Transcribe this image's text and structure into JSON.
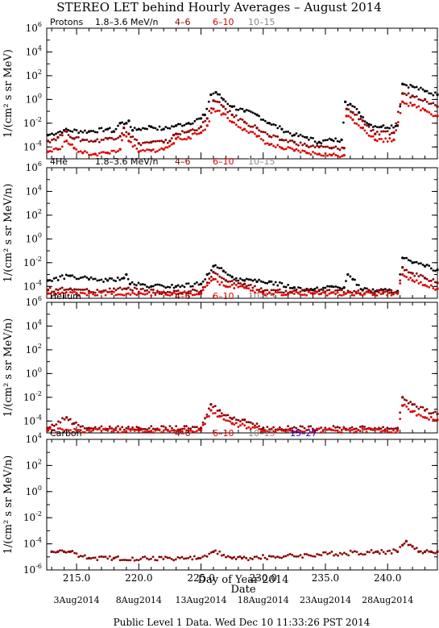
{
  "title": "STEREO LET behind Hourly Averages – August 2014",
  "xlabel": "Day of Year 2014",
  "date_axis_label": "Date",
  "footer": "Public Level 1 Data. Wed Dec 10 11:33:26 PST 2014",
  "x_ticks": [
    "215.0",
    "220.0",
    "225.0",
    "230.0",
    "235.0",
    "240.0"
  ],
  "date_ticks": [
    "3Aug2014",
    "8Aug2014",
    "13Aug2014",
    "18Aug2014",
    "23Aug2014",
    "28Aug2014"
  ],
  "colors": {
    "black": "#000000",
    "dark_red": "#8b0000",
    "red": "#e00000",
    "gray": "#888888",
    "blue": "#0000dd"
  },
  "chart_data": [
    {
      "type": "scatter",
      "panel_label": "Protons",
      "ylabel": "1/(cm² s sr MeV)",
      "ylog": true,
      "ylim_exp": [
        -5,
        6
      ],
      "y_ticks": [
        "10^6",
        "10^4",
        "10^2",
        "10^0",
        "10^-2",
        "10^-4"
      ],
      "xlim": [
        212.6,
        244.0
      ],
      "legend": [
        {
          "label": "1.8–3.6 MeV/n",
          "color": "black"
        },
        {
          "label": "4–6",
          "color": "dark_red"
        },
        {
          "label": "6–10",
          "color": "red"
        },
        {
          "label": "10–15",
          "color": "gray"
        }
      ],
      "series": [
        {
          "name": "1.8–3.6 MeV/n",
          "color": "black",
          "points": [
            [
              212.7,
              -3
            ],
            [
              214,
              -2.6
            ],
            [
              216,
              -2.7
            ],
            [
              217.5,
              -2.5
            ],
            [
              218,
              -2.7
            ],
            [
              218.5,
              -2
            ],
            [
              219,
              -2
            ],
            [
              219.2,
              -1.8
            ],
            [
              219.5,
              -2.6
            ],
            [
              220,
              -2.5
            ],
            [
              221,
              -2.3
            ],
            [
              222,
              -2.5
            ],
            [
              223,
              -2.2
            ],
            [
              224,
              -2.0
            ],
            [
              225,
              -1.6
            ],
            [
              225.3,
              -1.3
            ],
            [
              225.8,
              0.4
            ],
            [
              226.2,
              0.6
            ],
            [
              226.8,
              0
            ],
            [
              227.5,
              -0.6
            ],
            [
              228.5,
              -1
            ],
            [
              229.5,
              -1.3
            ],
            [
              230.5,
              -2
            ],
            [
              231.5,
              -2.5
            ],
            [
              232.5,
              -3
            ],
            [
              233.5,
              -3.2
            ],
            [
              234.5,
              -3.6
            ],
            [
              235.5,
              -3.4
            ],
            [
              236.3,
              -3.4
            ],
            [
              236.6,
              -0.2
            ],
            [
              237,
              -0.4
            ],
            [
              237.7,
              -1.1
            ],
            [
              238.5,
              -2.1
            ],
            [
              239.5,
              -2.3
            ],
            [
              240.8,
              -2.2
            ],
            [
              241.2,
              1.3
            ],
            [
              242,
              1.1
            ],
            [
              243,
              0.7
            ],
            [
              244,
              0.4
            ]
          ]
        },
        {
          "name": "4–6",
          "color": "dark_red",
          "points": [
            [
              212.7,
              -3.5
            ],
            [
              213.5,
              -3.2
            ],
            [
              214.2,
              -2.7
            ],
            [
              214.8,
              -3.3
            ],
            [
              215.5,
              -3.4
            ],
            [
              216.5,
              -3.5
            ],
            [
              217.5,
              -3.3
            ],
            [
              218.5,
              -3.1
            ],
            [
              218.8,
              -2.4
            ],
            [
              219.2,
              -2.9
            ],
            [
              220,
              -3.7
            ],
            [
              221,
              -3.6
            ],
            [
              222,
              -3.6
            ],
            [
              222.5,
              -3.5
            ],
            [
              222.8,
              -3.0
            ],
            [
              223,
              -2.9
            ],
            [
              224,
              -2.7
            ],
            [
              225,
              -2.3
            ],
            [
              225.5,
              -1.6
            ],
            [
              226,
              -0.1
            ],
            [
              226.8,
              -0.6
            ],
            [
              227.5,
              -1.3
            ],
            [
              228.5,
              -1.9
            ],
            [
              229.5,
              -2.4
            ],
            [
              230.5,
              -3.1
            ],
            [
              231.5,
              -3.4
            ],
            [
              232.5,
              -3.6
            ],
            [
              233.5,
              -3.9
            ],
            [
              234.5,
              -4.0
            ],
            [
              235.5,
              -4.1
            ],
            [
              236.5,
              -4.1
            ],
            [
              236.7,
              -0.8
            ],
            [
              237.2,
              -1.1
            ],
            [
              238,
              -1.8
            ],
            [
              239,
              -2.9
            ],
            [
              240.5,
              -2.8
            ],
            [
              241.2,
              0.5
            ],
            [
              242,
              0.3
            ],
            [
              243,
              0
            ],
            [
              244,
              -0.6
            ]
          ]
        },
        {
          "name": "6–10",
          "color": "red",
          "points": [
            [
              212.7,
              -4.4
            ],
            [
              213.5,
              -4.2
            ],
            [
              214.2,
              -3.5
            ],
            [
              214.8,
              -4.1
            ],
            [
              215.5,
              -4.5
            ],
            [
              216.5,
              -4.6
            ],
            [
              217.5,
              -4.5
            ],
            [
              218.5,
              -4.2
            ],
            [
              218.8,
              -3.0
            ],
            [
              219.2,
              -3.5
            ],
            [
              220,
              -4.4
            ],
            [
              221,
              -4.3
            ],
            [
              222,
              -4.2
            ],
            [
              222.8,
              -3.7
            ],
            [
              223,
              -3.3
            ],
            [
              224,
              -3.2
            ],
            [
              225,
              -2.8
            ],
            [
              225.5,
              -2.2
            ],
            [
              226,
              -0.8
            ],
            [
              226.8,
              -1.2
            ],
            [
              227.5,
              -1.9
            ],
            [
              228.5,
              -2.5
            ],
            [
              229.5,
              -3.1
            ],
            [
              230.5,
              -3.8
            ],
            [
              231.5,
              -4.1
            ],
            [
              232.5,
              -4.3
            ],
            [
              233.5,
              -4.5
            ],
            [
              234.5,
              -4.6
            ],
            [
              235.5,
              -4.7
            ],
            [
              236.5,
              -4.7
            ],
            [
              236.7,
              -1.4
            ],
            [
              237.2,
              -1.7
            ],
            [
              238,
              -2.4
            ],
            [
              239,
              -3.4
            ],
            [
              240.5,
              -3.4
            ],
            [
              241.2,
              -0.2
            ],
            [
              242,
              -0.5
            ],
            [
              243,
              -0.9
            ],
            [
              244,
              -1.4
            ]
          ]
        }
      ]
    },
    {
      "type": "scatter",
      "panel_label": "4He",
      "ylabel": "1/(cm² s sr MeV/n)",
      "ylog": true,
      "ylim_exp": [
        -5,
        6
      ],
      "y_ticks": [
        "10^6",
        "10^4",
        "10^2",
        "10^0",
        "10^-2",
        "10^-4"
      ],
      "xlim": [
        212.6,
        244.0
      ],
      "legend": [
        {
          "label": "1.8–3.6 MeV/n",
          "color": "black"
        },
        {
          "label": "4–6",
          "color": "dark_red"
        },
        {
          "label": "6–10",
          "color": "red"
        },
        {
          "label": "10–15",
          "color": "gray"
        }
      ],
      "series": [
        {
          "name": "1.8–3.6 MeV/n",
          "color": "black",
          "points": [
            [
              212.7,
              -3.5
            ],
            [
              214.5,
              -3.1
            ],
            [
              216,
              -3.4
            ],
            [
              217.5,
              -3.5
            ],
            [
              218.8,
              -3.3
            ],
            [
              219,
              -3.0
            ],
            [
              219.3,
              -3.8
            ],
            [
              221,
              -4.0
            ],
            [
              223,
              -4.0
            ],
            [
              225,
              -3.8
            ],
            [
              225.5,
              -3.0
            ],
            [
              226,
              -2.3
            ],
            [
              226.8,
              -2.7
            ],
            [
              227.5,
              -3.2
            ],
            [
              228.5,
              -3.5
            ],
            [
              229.5,
              -3.6
            ],
            [
              230.5,
              -3.6
            ],
            [
              232.5,
              -4.1
            ],
            [
              234,
              -4.3
            ],
            [
              235.5,
              -4.0
            ],
            [
              236.5,
              -4.1
            ],
            [
              236.8,
              -3.0
            ],
            [
              237.2,
              -3.4
            ],
            [
              238,
              -4.3
            ],
            [
              240.8,
              -4.4
            ],
            [
              241.2,
              -1.6
            ],
            [
              242,
              -2
            ],
            [
              243,
              -2.3
            ],
            [
              244,
              -2.6
            ]
          ]
        },
        {
          "name": "4–6",
          "color": "dark_red",
          "points": [
            [
              212.7,
              -4.3
            ],
            [
              214.5,
              -4.2
            ],
            [
              216,
              -4.4
            ],
            [
              219,
              -4.2
            ],
            [
              222,
              -4.5
            ],
            [
              225,
              -4.4
            ],
            [
              226,
              -2.8
            ],
            [
              227,
              -3.5
            ],
            [
              228.5,
              -3.8
            ],
            [
              230,
              -4.4
            ],
            [
              240.8,
              -4.5
            ],
            [
              241.2,
              -2.4
            ],
            [
              242,
              -2.9
            ],
            [
              243,
              -3.3
            ],
            [
              244,
              -3.7
            ]
          ]
        },
        {
          "name": "6–10",
          "color": "red",
          "points": [
            [
              212.7,
              -4.6
            ],
            [
              215,
              -4.6
            ],
            [
              220,
              -4.6
            ],
            [
              225,
              -4.6
            ],
            [
              226,
              -3.4
            ],
            [
              227,
              -4.0
            ],
            [
              228.5,
              -4.1
            ],
            [
              230,
              -4.6
            ],
            [
              240.8,
              -4.6
            ],
            [
              241.2,
              -3.0
            ],
            [
              242,
              -3.5
            ],
            [
              243,
              -3.9
            ],
            [
              244,
              -4.2
            ]
          ]
        }
      ]
    },
    {
      "type": "scatter",
      "panel_label": "Helium",
      "ylabel": "1/(cm² s sr MeV/n)",
      "ylog": true,
      "ylim_exp": [
        -5,
        6
      ],
      "y_ticks": [
        "10^6",
        "10^4",
        "10^2",
        "10^0",
        "10^-2",
        "10^-4"
      ],
      "xlim": [
        212.6,
        244.0
      ],
      "legend": [
        {
          "label": "4–6",
          "color": "dark_red"
        },
        {
          "label": "6–10",
          "color": "red"
        },
        {
          "label": "10–15",
          "color": "gray"
        }
      ],
      "series": [
        {
          "name": "4–6",
          "color": "dark_red",
          "points": [
            [
              212.7,
              -4.6
            ],
            [
              214.2,
              -3.7
            ],
            [
              214.8,
              -4.2
            ],
            [
              216,
              -4.6
            ],
            [
              220,
              -4.6
            ],
            [
              225,
              -4.6
            ],
            [
              225.8,
              -2.6
            ],
            [
              226.5,
              -3.1
            ],
            [
              227.5,
              -3.8
            ],
            [
              228.5,
              -3.9
            ],
            [
              230,
              -4.6
            ],
            [
              240.8,
              -4.6
            ],
            [
              241.2,
              -2.0
            ],
            [
              242,
              -2.6
            ],
            [
              243,
              -3.1
            ],
            [
              244,
              -3.4
            ]
          ]
        },
        {
          "name": "6–10",
          "color": "red",
          "points": [
            [
              212.7,
              -4.8
            ],
            [
              215,
              -4.8
            ],
            [
              220,
              -4.8
            ],
            [
              225,
              -4.8
            ],
            [
              225.8,
              -3.1
            ],
            [
              226.5,
              -3.6
            ],
            [
              227.5,
              -4.2
            ],
            [
              230,
              -4.8
            ],
            [
              240.8,
              -4.8
            ],
            [
              241.2,
              -2.7
            ],
            [
              242,
              -3.2
            ],
            [
              243,
              -3.7
            ],
            [
              244,
              -3.9
            ]
          ]
        }
      ]
    },
    {
      "type": "scatter",
      "panel_label": "Carbon",
      "ylabel": "1/(cm² s sr MeV/n)",
      "ylog": true,
      "ylim_exp": [
        -6,
        4
      ],
      "y_ticks": [
        "10^4",
        "10^2",
        "10^0",
        "10^-2",
        "10^-4",
        "10^-6"
      ],
      "xlim": [
        212.6,
        244.0
      ],
      "legend": [
        {
          "label": "4–6",
          "color": "dark_red"
        },
        {
          "label": "6–10",
          "color": "red"
        },
        {
          "label": "10–15",
          "color": "gray"
        },
        {
          "label": "15–27",
          "color": "blue"
        }
      ],
      "series": [
        {
          "name": "4–6",
          "color": "dark_red",
          "points": [
            [
              213,
              -4.6
            ],
            [
              213.5,
              -4.6
            ],
            [
              214,
              -4.6
            ],
            [
              214.5,
              -4.6
            ],
            [
              216,
              -5.1
            ],
            [
              218,
              -5.1
            ],
            [
              224.8,
              -5.1
            ],
            [
              226,
              -4.6
            ],
            [
              227.5,
              -5.1
            ],
            [
              228.3,
              -5.1
            ],
            [
              239.2,
              -4.6
            ],
            [
              240.8,
              -4.6
            ],
            [
              241.2,
              -4.1
            ],
            [
              241.5,
              -3.8
            ],
            [
              242,
              -4.2
            ],
            [
              242.5,
              -4.6
            ],
            [
              243,
              -4.6
            ],
            [
              243.5,
              -4.6
            ],
            [
              244,
              -4.6
            ]
          ]
        }
      ]
    }
  ]
}
